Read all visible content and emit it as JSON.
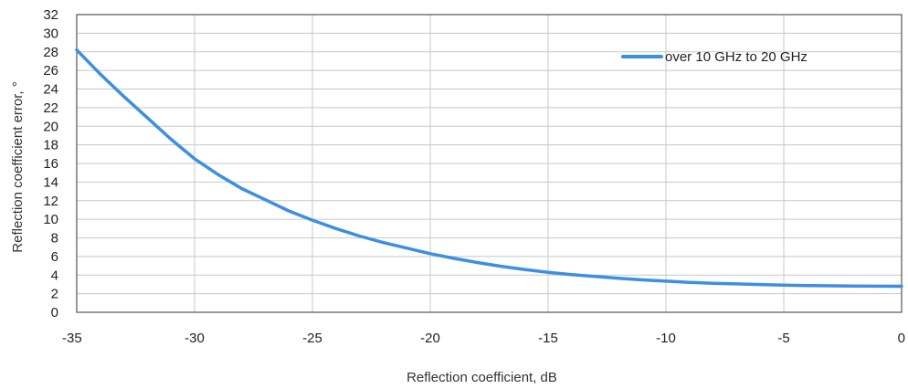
{
  "chart_data": {
    "type": "line",
    "xlabel": "Reflection coefficient, dB",
    "ylabel": "Reflection coefficient error, °",
    "xlim": [
      -35,
      0
    ],
    "ylim": [
      0,
      32
    ],
    "xticks": [
      -35,
      -30,
      -25,
      -20,
      -15,
      -10,
      -5,
      0
    ],
    "yticks": [
      0,
      2,
      4,
      6,
      8,
      10,
      12,
      14,
      16,
      18,
      20,
      22,
      24,
      26,
      28,
      30,
      32
    ],
    "grid": true,
    "legend_position": "top-right",
    "series": [
      {
        "name": "over 10 GHz to 20 GHz",
        "color": "#3d8fe0",
        "x": [
          -35,
          -34,
          -33,
          -32,
          -31,
          -30,
          -29,
          -28,
          -27,
          -26,
          -25,
          -24,
          -23,
          -22,
          -21,
          -20,
          -19,
          -18,
          -17,
          -16,
          -15,
          -14,
          -13,
          -12,
          -11,
          -10,
          -9,
          -8,
          -7,
          -6,
          -5,
          -4,
          -3,
          -2,
          -1,
          0
        ],
        "y": [
          28.2,
          25.6,
          23.2,
          20.9,
          18.6,
          16.5,
          14.8,
          13.3,
          12.1,
          10.9,
          9.9,
          9.0,
          8.2,
          7.5,
          6.9,
          6.3,
          5.8,
          5.35,
          4.95,
          4.6,
          4.3,
          4.05,
          3.85,
          3.65,
          3.48,
          3.35,
          3.22,
          3.12,
          3.05,
          2.98,
          2.92,
          2.88,
          2.85,
          2.83,
          2.81,
          2.8
        ]
      }
    ]
  }
}
